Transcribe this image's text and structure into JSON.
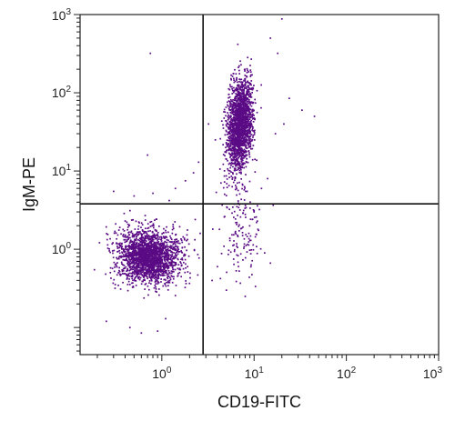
{
  "chart_data": {
    "type": "scatter",
    "xlabel": "CD19-FITC",
    "ylabel": "IgM-PE",
    "x_scale": "log",
    "y_scale": "log",
    "xlim": [
      0.13,
      1000
    ],
    "ylim": [
      0.045,
      1000
    ],
    "x_ticks": [
      {
        "value": 1,
        "base": "10",
        "exp": "0"
      },
      {
        "value": 10,
        "base": "10",
        "exp": "1"
      },
      {
        "value": 100,
        "base": "10",
        "exp": "2"
      },
      {
        "value": 1000,
        "base": "10",
        "exp": "3"
      }
    ],
    "y_ticks": [
      {
        "value": 1,
        "base": "10",
        "exp": "0"
      },
      {
        "value": 10,
        "base": "10",
        "exp": "1"
      },
      {
        "value": 100,
        "base": "10",
        "exp": "2"
      },
      {
        "value": 1000,
        "base": "10",
        "exp": "3"
      }
    ],
    "quadrant_gate": {
      "x": 2.8,
      "y": 3.8
    },
    "point_color": "#5a0a84",
    "grid": false,
    "populations": [
      {
        "center_x": 0.72,
        "center_y": 0.8,
        "count": 2100
      },
      {
        "center_x": 7.0,
        "center_y": 40,
        "count": 1900
      }
    ],
    "scattered_events": [
      [
        0.3,
        5.5
      ],
      [
        0.5,
        4.8
      ],
      [
        0.8,
        5.2
      ],
      [
        1.2,
        4.2
      ],
      [
        0.25,
        0.12
      ],
      [
        0.45,
        0.1
      ],
      [
        1.5,
        1.2
      ],
      [
        1.9,
        0.6
      ],
      [
        2.3,
        2.4
      ],
      [
        0.9,
        0.09
      ],
      [
        0.6,
        0.085
      ],
      [
        1.1,
        0.13
      ],
      [
        0.35,
        1.9
      ],
      [
        0.4,
        2.3
      ],
      [
        2.6,
        1.6
      ],
      [
        0.7,
        16
      ],
      [
        0.75,
        320
      ],
      [
        1.4,
        6
      ],
      [
        1.8,
        7.5
      ],
      [
        2.2,
        9.5
      ],
      [
        2.5,
        13
      ],
      [
        45,
        50
      ],
      [
        33,
        60
      ],
      [
        24,
        85
      ],
      [
        18,
        320
      ],
      [
        20,
        880
      ],
      [
        15,
        500
      ],
      [
        9,
        1.3
      ],
      [
        6,
        0.75
      ],
      [
        11,
        1.8
      ],
      [
        13,
        0.9
      ],
      [
        4,
        0.6
      ],
      [
        3.5,
        0.4
      ],
      [
        5,
        0.3
      ],
      [
        8,
        0.25
      ],
      [
        3.8,
        25
      ],
      [
        3.2,
        40
      ],
      [
        12,
        6
      ],
      [
        14,
        8
      ],
      [
        17,
        30
      ],
      [
        21,
        40
      ],
      [
        5.5,
        15
      ],
      [
        6.5,
        2.2
      ],
      [
        7.5,
        1.5
      ],
      [
        10,
        3.1
      ]
    ]
  }
}
